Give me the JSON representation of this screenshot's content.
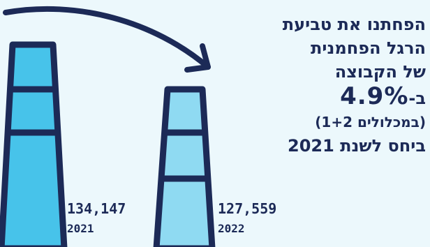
{
  "headline": {
    "line1": "הפחתנו את טביעת",
    "line2": "הרגל הפחמנית",
    "line3": "של הקבוצה",
    "line4_prefix": "ב-",
    "line4_value": "4.9%",
    "line5": "(במכלולים 1+2)",
    "line6": "ביחס לשנת 2021"
  },
  "chart_data": {
    "type": "bar",
    "categories": [
      "2021",
      "2022"
    ],
    "values": [
      134147,
      127559
    ],
    "value_labels": [
      "134,147",
      "127,559"
    ],
    "title": "",
    "xlabel": "",
    "ylabel": ""
  },
  "colors": {
    "background": "#ecf8fc",
    "navy": "#1c2a57",
    "chimney_2021": "#47c3ea",
    "chimney_2022": "#8fdaf2"
  }
}
